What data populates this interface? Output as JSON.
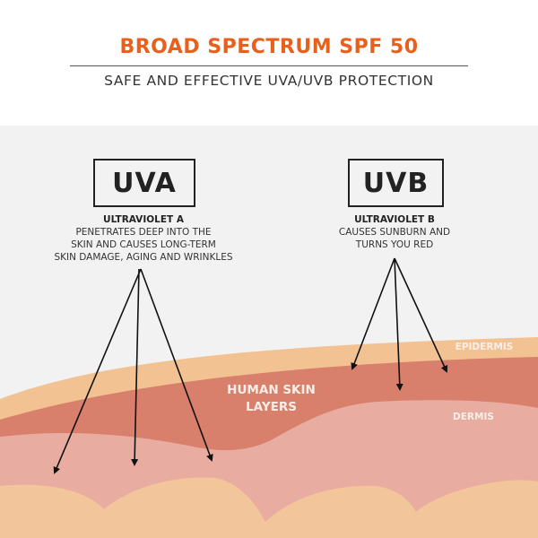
{
  "header": {
    "title": "BROAD SPECTRUM SPF 50",
    "subtitle": "SAFE AND EFFECTIVE UVA/UVB PROTECTION"
  },
  "uva": {
    "badge": "UVA",
    "name": "ULTRAVIOLET A",
    "description": [
      "PENETRATES DEEP INTO THE",
      "SKIN AND CAUSES LONG-TERM",
      "SKIN DAMAGE, AGING AND WRINKLES"
    ]
  },
  "uvb": {
    "badge": "UVB",
    "name": "ULTRAVIOLET B",
    "description": [
      "CAUSES SUNBURN AND",
      "TURNS YOU RED"
    ]
  },
  "skin": {
    "label_line1": "HUMAN SKIN",
    "label_line2": "LAYERS",
    "epidermis": "EPIDERMIS",
    "dermis": "DERMIS"
  },
  "colors": {
    "accent": "#e8601c",
    "background": "#f2f2f2",
    "epidermis": "#f2c292",
    "red_layer": "#d9806c",
    "dermis": "#e8aca0",
    "fat": "#f2c59a"
  }
}
